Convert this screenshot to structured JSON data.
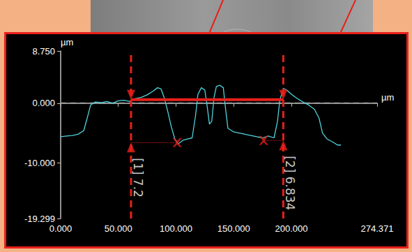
{
  "chart_data": {
    "type": "line",
    "x_label": "µm",
    "y_label": "µm",
    "xlim": [
      0,
      274.371
    ],
    "xticks": [
      {
        "value": 0,
        "label": "0.000"
      },
      {
        "value": 50,
        "label": "50.000"
      },
      {
        "value": 100,
        "label": "100.000"
      },
      {
        "value": 150,
        "label": "150.000"
      },
      {
        "value": 200,
        "label": "200.000"
      },
      {
        "value": 274.371,
        "label": "274.371"
      }
    ],
    "ylim": [
      -19.299,
      8.75
    ],
    "yticks": [
      {
        "value": -19.299,
        "label": "-19.299"
      },
      {
        "value": -10,
        "label": "-10.000"
      },
      {
        "value": 0,
        "label": "0.000"
      },
      {
        "value": 8.75,
        "label": "8.750"
      }
    ],
    "grid": false,
    "zero_line": 0,
    "color": "#4fd3dc",
    "x": [
      0,
      5,
      10,
      15,
      20,
      23,
      26,
      30,
      35,
      40,
      45,
      50,
      55,
      60,
      65,
      70,
      75,
      80,
      84,
      87,
      90,
      93,
      96,
      99,
      102,
      106,
      110,
      114,
      117,
      119,
      122,
      125,
      127,
      129,
      131,
      133,
      135,
      138,
      141,
      143,
      145,
      150,
      155,
      160,
      165,
      170,
      175,
      180,
      185,
      188,
      190,
      193,
      196,
      200,
      205,
      210,
      215,
      220,
      224,
      227,
      231,
      236,
      240,
      243
    ],
    "values": [
      -5.6,
      -5.5,
      -5.4,
      -5.2,
      -4.6,
      -2.5,
      -0.3,
      0.2,
      0.1,
      0.3,
      0.0,
      0.4,
      0.5,
      0.3,
      0.8,
      1.0,
      1.4,
      2.0,
      2.6,
      2.4,
      0.8,
      -1.5,
      -4.0,
      -6.0,
      -6.8,
      -6.2,
      -6.0,
      -5.8,
      -2.0,
      1.5,
      2.6,
      2.2,
      -0.5,
      -3.5,
      -3.0,
      1.0,
      2.8,
      3.0,
      2.6,
      -1.0,
      -4.2,
      -4.8,
      -5.0,
      -5.2,
      -5.4,
      -5.6,
      -5.8,
      -5.5,
      -5.8,
      -3.0,
      0.5,
      2.5,
      2.2,
      1.5,
      0.8,
      0.2,
      -0.3,
      -1.0,
      -2.5,
      -5.0,
      -6.0,
      -6.5,
      -7.0,
      -7.0
    ],
    "measurements": [
      {
        "label": "[1] 7.2",
        "x": 61,
        "top": 0.6,
        "bottom": -6.6,
        "marker_x": 101,
        "color": "#e8201a"
      },
      {
        "label": "[2] 6.834",
        "x": 193,
        "top": 0.6,
        "bottom": -6.234,
        "marker_x": 176,
        "color": "#e8201a"
      }
    ]
  }
}
